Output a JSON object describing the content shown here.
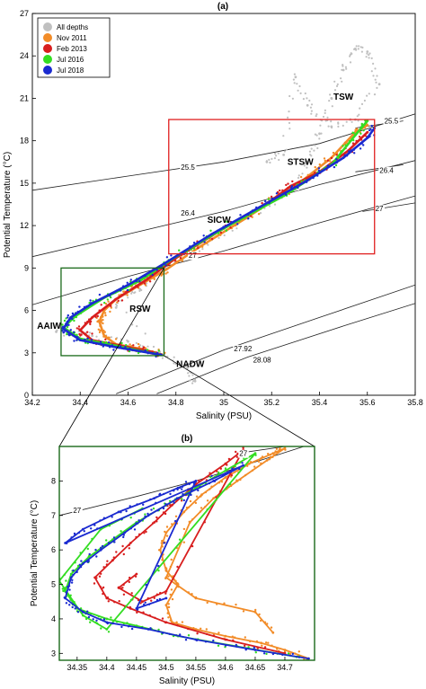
{
  "chart_data": [
    {
      "panel_label": "(a)",
      "type": "scatter",
      "xlabel": "Salinity (PSU)",
      "ylabel": "Potential Temperature (°C)",
      "xlim": [
        34.2,
        35.8
      ],
      "ylim": [
        0,
        27
      ],
      "x_ticks": [
        "34.2",
        "34.4",
        "34.6",
        "34.8",
        "35",
        "35.2",
        "35.4",
        "35.6",
        "35.8"
      ],
      "y_ticks": [
        "0",
        "3",
        "6",
        "9",
        "12",
        "15",
        "18",
        "21",
        "24",
        "27"
      ],
      "grid": false,
      "legend_position": "top-left",
      "legend": [
        {
          "name": "All depths",
          "color": "#c0c0c0"
        },
        {
          "name": "Nov 2011",
          "color": "#f28c28"
        },
        {
          "name": "Feb 2013",
          "color": "#d81e1e"
        },
        {
          "name": "Jul 2016",
          "color": "#33dd22"
        },
        {
          "name": "Jul 2018",
          "color": "#1a2ad0"
        }
      ],
      "water_masses": [
        {
          "label": "TSW",
          "x": 35.5,
          "y": 20.9
        },
        {
          "label": "STSW",
          "x": 35.32,
          "y": 16.3
        },
        {
          "label": "SICW",
          "x": 34.98,
          "y": 12.2
        },
        {
          "label": "RSW",
          "x": 34.65,
          "y": 5.9
        },
        {
          "label": "AAIW",
          "x": 34.27,
          "y": 4.7
        },
        {
          "label": "NADW",
          "x": 34.86,
          "y": 2.0
        }
      ],
      "isopycnals": [
        {
          "label": "25.5",
          "points": [
            [
              34.2,
              14.5
            ],
            [
              34.6,
              15.5
            ],
            [
              35.0,
              16.5
            ],
            [
              35.4,
              17.8
            ],
            [
              35.8,
              19.9
            ]
          ],
          "label_at": [
            34.85,
            16.15
          ]
        },
        {
          "label": "25.5",
          "points": [
            [
              35.55,
              18.9
            ],
            [
              35.75,
              19.4
            ]
          ],
          "label_at": [
            35.7,
            19.4
          ]
        },
        {
          "label": "26.4",
          "points": [
            [
              34.2,
              9.8
            ],
            [
              34.6,
              11.4
            ],
            [
              35.0,
              13.0
            ],
            [
              35.4,
              14.9
            ],
            [
              35.8,
              16.6
            ]
          ],
          "label_at": [
            34.85,
            12.9
          ]
        },
        {
          "label": "26.4",
          "points": [
            [
              35.55,
              15.8
            ],
            [
              35.75,
              16.3
            ]
          ],
          "label_at": [
            35.68,
            15.9
          ]
        },
        {
          "label": "27",
          "points": [
            [
              34.2,
              6.4
            ],
            [
              34.6,
              8.4
            ],
            [
              35.0,
              10.2
            ],
            [
              35.4,
              12.2
            ],
            [
              35.8,
              14.1
            ]
          ],
          "label_at": [
            34.87,
            9.9
          ]
        },
        {
          "label": "27",
          "points": [
            [
              35.58,
              13.0
            ],
            [
              35.8,
              13.6
            ]
          ],
          "label_at": [
            35.65,
            13.2
          ]
        },
        {
          "label": "27.92",
          "points": [
            [
              34.55,
              0.1
            ],
            [
              35.0,
              3.2
            ],
            [
              35.4,
              5.5
            ],
            [
              35.8,
              7.8
            ]
          ],
          "label_at": [
            35.08,
            3.3
          ]
        },
        {
          "label": "28.08",
          "points": [
            [
              34.72,
              0.1
            ],
            [
              35.1,
              2.7
            ],
            [
              35.5,
              4.9
            ],
            [
              35.8,
              6.5
            ]
          ],
          "label_at": [
            35.16,
            2.5
          ]
        }
      ],
      "series": [
        {
          "name": "All depths",
          "color": "#c0c0c0",
          "points": [
            [
              34.3,
              4.5
            ],
            [
              34.45,
              4.2
            ],
            [
              34.6,
              3.8
            ],
            [
              34.72,
              3.0
            ],
            [
              34.85,
              2.0
            ],
            [
              34.88,
              1.0
            ],
            [
              34.55,
              6.2
            ],
            [
              34.65,
              7.5
            ],
            [
              34.75,
              9.0
            ],
            [
              34.95,
              11.0
            ],
            [
              35.1,
              12.5
            ],
            [
              35.3,
              14.5
            ],
            [
              35.35,
              16.5
            ],
            [
              35.4,
              18.5
            ],
            [
              35.45,
              21.0
            ],
            [
              35.5,
              23.0
            ],
            [
              35.55,
              24.5
            ],
            [
              35.6,
              24.3
            ],
            [
              35.65,
              22.0
            ],
            [
              35.55,
              19.5
            ],
            [
              35.45,
              19.0
            ],
            [
              35.35,
              20.5
            ],
            [
              35.3,
              22.5
            ],
            [
              35.25,
              17.0
            ],
            [
              35.18,
              16.5
            ]
          ]
        },
        {
          "name": "Nov 2011",
          "color": "#f28c28",
          "points": [
            [
              34.74,
              2.9
            ],
            [
              34.65,
              3.3
            ],
            [
              34.55,
              3.6
            ],
            [
              34.5,
              4.2
            ],
            [
              34.48,
              5.2
            ],
            [
              34.5,
              6.0
            ],
            [
              34.55,
              6.8
            ],
            [
              34.62,
              7.5
            ],
            [
              34.7,
              8.3
            ],
            [
              34.76,
              8.9
            ],
            [
              34.9,
              10.5
            ],
            [
              35.1,
              12.6
            ],
            [
              35.3,
              14.8
            ],
            [
              35.45,
              16.8
            ],
            [
              35.55,
              18.6
            ],
            [
              35.6,
              19.1
            ]
          ]
        },
        {
          "name": "Feb 2013",
          "color": "#d81e1e",
          "points": [
            [
              34.72,
              3.0
            ],
            [
              34.6,
              3.4
            ],
            [
              34.45,
              3.9
            ],
            [
              34.4,
              4.6
            ],
            [
              34.45,
              5.5
            ],
            [
              34.55,
              6.8
            ],
            [
              34.68,
              8.2
            ],
            [
              34.8,
              9.7
            ],
            [
              35.0,
              11.8
            ],
            [
              35.2,
              13.8
            ],
            [
              35.28,
              14.8
            ],
            [
              35.4,
              15.8
            ],
            [
              35.52,
              17.3
            ],
            [
              35.6,
              18.6
            ]
          ]
        },
        {
          "name": "Jul 2016",
          "color": "#33dd22",
          "points": [
            [
              34.72,
              2.9
            ],
            [
              34.55,
              3.5
            ],
            [
              34.4,
              4.0
            ],
            [
              34.33,
              4.8
            ],
            [
              34.38,
              5.6
            ],
            [
              34.5,
              6.9
            ],
            [
              34.65,
              8.1
            ],
            [
              34.8,
              9.8
            ],
            [
              35.0,
              11.8
            ],
            [
              35.25,
              14.1
            ],
            [
              35.45,
              16.3
            ],
            [
              35.55,
              18.4
            ],
            [
              35.6,
              19.4
            ]
          ]
        },
        {
          "name": "Jul 2018",
          "color": "#1a2ad0",
          "points": [
            [
              34.74,
              2.85
            ],
            [
              34.55,
              3.4
            ],
            [
              34.4,
              3.9
            ],
            [
              34.33,
              4.7
            ],
            [
              34.36,
              5.5
            ],
            [
              34.45,
              6.5
            ],
            [
              34.6,
              7.8
            ],
            [
              34.75,
              9.3
            ],
            [
              34.95,
              11.4
            ],
            [
              35.15,
              13.3
            ],
            [
              35.35,
              15.2
            ],
            [
              35.5,
              16.8
            ],
            [
              35.6,
              18.2
            ],
            [
              35.63,
              18.9
            ]
          ]
        }
      ],
      "highlight_boxes": [
        {
          "color": "#e02020",
          "x": [
            34.77,
            35.63
          ],
          "y": [
            10.0,
            19.5
          ]
        },
        {
          "color": "#1a6a1a",
          "x": [
            34.32,
            34.75
          ],
          "y": [
            2.8,
            9.0
          ]
        }
      ]
    },
    {
      "panel_label": "(b)",
      "type": "scatter",
      "xlabel": "Salinity (PSU)",
      "ylabel": "Potential Temperature (°C)",
      "xlim": [
        34.32,
        34.75
      ],
      "ylim": [
        2.8,
        9.0
      ],
      "x_ticks": [
        "34.35",
        "34.4",
        "34.45",
        "34.5",
        "34.55",
        "34.6",
        "34.65",
        "34.7"
      ],
      "y_ticks": [
        "3",
        "4",
        "5",
        "6",
        "7",
        "8"
      ],
      "grid": false,
      "isopycnals": [
        {
          "label": "27",
          "points": [
            [
              34.32,
              7.0
            ],
            [
              34.45,
              7.55
            ],
            [
              34.55,
              8.0
            ],
            [
              34.65,
              8.55
            ],
            [
              34.75,
              9.1
            ]
          ],
          "label_at": [
            34.35,
            7.15
          ]
        },
        {
          "label": "27",
          "points": [
            [
              34.62,
              8.8
            ],
            [
              34.72,
              9.05
            ]
          ],
          "label_at": [
            34.63,
            8.8
          ]
        }
      ],
      "series": [
        {
          "name": "Nov 2011",
          "color": "#f28c28",
          "points": [
            [
              34.74,
              2.85
            ],
            [
              34.7,
              3.1
            ],
            [
              34.66,
              3.3
            ],
            [
              34.6,
              3.5
            ],
            [
              34.55,
              3.7
            ],
            [
              34.51,
              3.9
            ],
            [
              34.5,
              4.4
            ],
            [
              34.52,
              5.0
            ],
            [
              34.5,
              5.4
            ],
            [
              34.49,
              6.0
            ],
            [
              34.5,
              6.5
            ],
            [
              34.53,
              7.1
            ],
            [
              34.56,
              7.6
            ],
            [
              34.6,
              8.1
            ],
            [
              34.64,
              8.5
            ],
            [
              34.68,
              8.8
            ],
            [
              34.7,
              8.95
            ],
            [
              34.67,
              8.6
            ],
            [
              34.62,
              8.0
            ],
            [
              34.58,
              7.5
            ],
            [
              34.54,
              6.8
            ],
            [
              34.5,
              5.2
            ],
            [
              34.55,
              4.6
            ],
            [
              34.65,
              4.2
            ],
            [
              34.68,
              3.6
            ]
          ]
        },
        {
          "name": "Feb 2013",
          "color": "#d81e1e",
          "points": [
            [
              34.7,
              3.0
            ],
            [
              34.6,
              3.4
            ],
            [
              34.5,
              3.9
            ],
            [
              34.44,
              4.3
            ],
            [
              34.4,
              4.6
            ],
            [
              34.38,
              5.2
            ],
            [
              34.41,
              5.7
            ],
            [
              34.44,
              6.2
            ],
            [
              34.48,
              6.8
            ],
            [
              34.51,
              7.3
            ],
            [
              34.55,
              7.9
            ],
            [
              34.6,
              8.5
            ],
            [
              34.63,
              8.9
            ],
            [
              34.5,
              4.8
            ],
            [
              34.46,
              4.5
            ],
            [
              34.42,
              4.9
            ],
            [
              34.45,
              5.3
            ]
          ]
        },
        {
          "name": "Jul 2016",
          "color": "#33dd22",
          "points": [
            [
              34.72,
              2.9
            ],
            [
              34.62,
              3.2
            ],
            [
              34.52,
              3.5
            ],
            [
              34.45,
              3.8
            ],
            [
              34.4,
              4.0
            ],
            [
              34.35,
              4.3
            ],
            [
              34.33,
              4.8
            ],
            [
              34.34,
              5.3
            ],
            [
              34.37,
              5.8
            ],
            [
              34.41,
              6.3
            ],
            [
              34.45,
              6.8
            ],
            [
              34.5,
              7.3
            ],
            [
              34.55,
              7.8
            ],
            [
              34.6,
              8.3
            ],
            [
              34.65,
              8.8
            ],
            [
              34.4,
              3.7
            ],
            [
              34.36,
              4.1
            ],
            [
              34.32,
              5.1
            ],
            [
              34.39,
              6.6
            ],
            [
              34.46,
              7.2
            ]
          ]
        },
        {
          "name": "Jul 2018",
          "color": "#1a2ad0",
          "points": [
            [
              34.74,
              2.85
            ],
            [
              34.65,
              3.1
            ],
            [
              34.55,
              3.4
            ],
            [
              34.47,
              3.7
            ],
            [
              34.4,
              3.9
            ],
            [
              34.36,
              4.2
            ],
            [
              34.33,
              4.6
            ],
            [
              34.34,
              5.2
            ],
            [
              34.36,
              5.6
            ],
            [
              34.39,
              6.0
            ],
            [
              34.43,
              6.5
            ],
            [
              34.47,
              7.0
            ],
            [
              34.52,
              7.5
            ],
            [
              34.58,
              8.0
            ],
            [
              34.63,
              8.45
            ],
            [
              34.33,
              6.2
            ],
            [
              34.36,
              6.6
            ],
            [
              34.42,
              7.1
            ],
            [
              34.48,
              7.5
            ],
            [
              34.52,
              7.8
            ],
            [
              34.55,
              8.0
            ],
            [
              34.45,
              4.3
            ],
            [
              34.5,
              4.6
            ]
          ]
        }
      ]
    }
  ]
}
